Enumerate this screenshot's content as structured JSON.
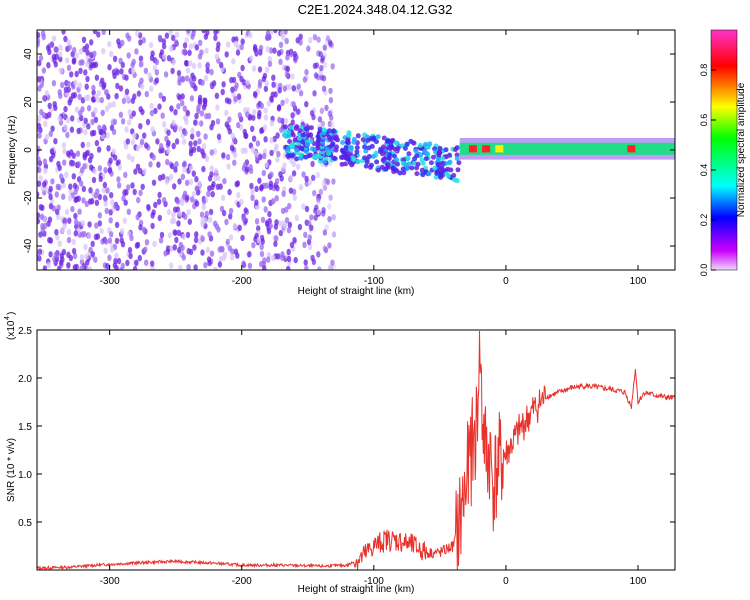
{
  "page_title": "C2E1.2024.348.04.12.G32",
  "colors": {
    "line": "#e8322c",
    "spectro_scatter": "#7a2cf0",
    "axis": "#000000"
  },
  "chart_data": [
    {
      "type": "heatmap",
      "title": "C2E1.2024.348.04.12.G32",
      "xlabel": "Height of straight line (km)",
      "ylabel": "Frequency (Hz)",
      "xlim": [
        -355,
        128
      ],
      "ylim": [
        -50,
        50
      ],
      "xticks": [
        -300,
        -200,
        -100,
        0,
        100
      ],
      "yticks": [
        -40,
        -20,
        0,
        20,
        40
      ],
      "colorbar": {
        "label": "Normalized spectral amplitude",
        "range": [
          0.0,
          0.96
        ],
        "ticks": [
          0.0,
          0.2,
          0.4,
          0.6,
          0.8
        ],
        "colormap": [
          "#ff33cc",
          "#ff0000",
          "#ffff00",
          "#00ff00",
          "#00ffff",
          "#0000ff",
          "#cc00ff"
        ]
      },
      "regions": [
        {
          "x": [
            -355,
            -130
          ],
          "freq_band": [
            -50,
            50
          ],
          "amplitude": 0.05,
          "note": "broadband noise"
        },
        {
          "x": [
            -170,
            -35
          ],
          "freq_band": [
            -12,
            8
          ],
          "amplitude": 0.35,
          "note": "descending band"
        },
        {
          "x": [
            -35,
            128
          ],
          "freq_band": [
            -2,
            3
          ],
          "amplitude": 0.5,
          "note": "steady narrow band"
        }
      ],
      "grid": false
    },
    {
      "type": "line",
      "xlabel": "Height of straight line (km)",
      "ylabel": "SNR (10 * v/v)",
      "y_multiplier_label": "(x10",
      "y_multiplier_exp": "4",
      "xlim": [
        -355,
        128
      ],
      "ylim": [
        0,
        2.5
      ],
      "xticks": [
        -300,
        -200,
        -100,
        0,
        100
      ],
      "yticks": [
        0.5,
        1.0,
        1.5,
        2.0,
        2.5
      ],
      "ytick_labels": [
        "0.5",
        "1.0",
        "1.5",
        "2.0",
        "2.5"
      ],
      "series": [
        {
          "x": [
            -355,
            -330,
            -300,
            -270,
            -250,
            -220,
            -200,
            -170,
            -140,
            -120,
            -110,
            -100,
            -90,
            -80,
            -70,
            -60,
            -50,
            -40,
            -35,
            -30,
            -28,
            -25,
            -22,
            -20,
            -18,
            -15,
            -12,
            -10,
            -5,
            0,
            10,
            20,
            30,
            40,
            50,
            60,
            70,
            80,
            90,
            95,
            98,
            100,
            105,
            110,
            120,
            128
          ],
          "y": [
            0.02,
            0.03,
            0.06,
            0.08,
            0.09,
            0.07,
            0.05,
            0.05,
            0.04,
            0.05,
            0.12,
            0.25,
            0.32,
            0.3,
            0.25,
            0.18,
            0.18,
            0.25,
            0.5,
            0.9,
            1.1,
            1.3,
            1.5,
            2.5,
            1.6,
            1.2,
            1.2,
            0.9,
            1.1,
            1.2,
            1.45,
            1.65,
            1.8,
            1.85,
            1.9,
            1.92,
            1.9,
            1.88,
            1.85,
            1.7,
            2.1,
            1.75,
            1.85,
            1.83,
            1.8,
            1.79
          ]
        }
      ],
      "grid": false
    }
  ]
}
